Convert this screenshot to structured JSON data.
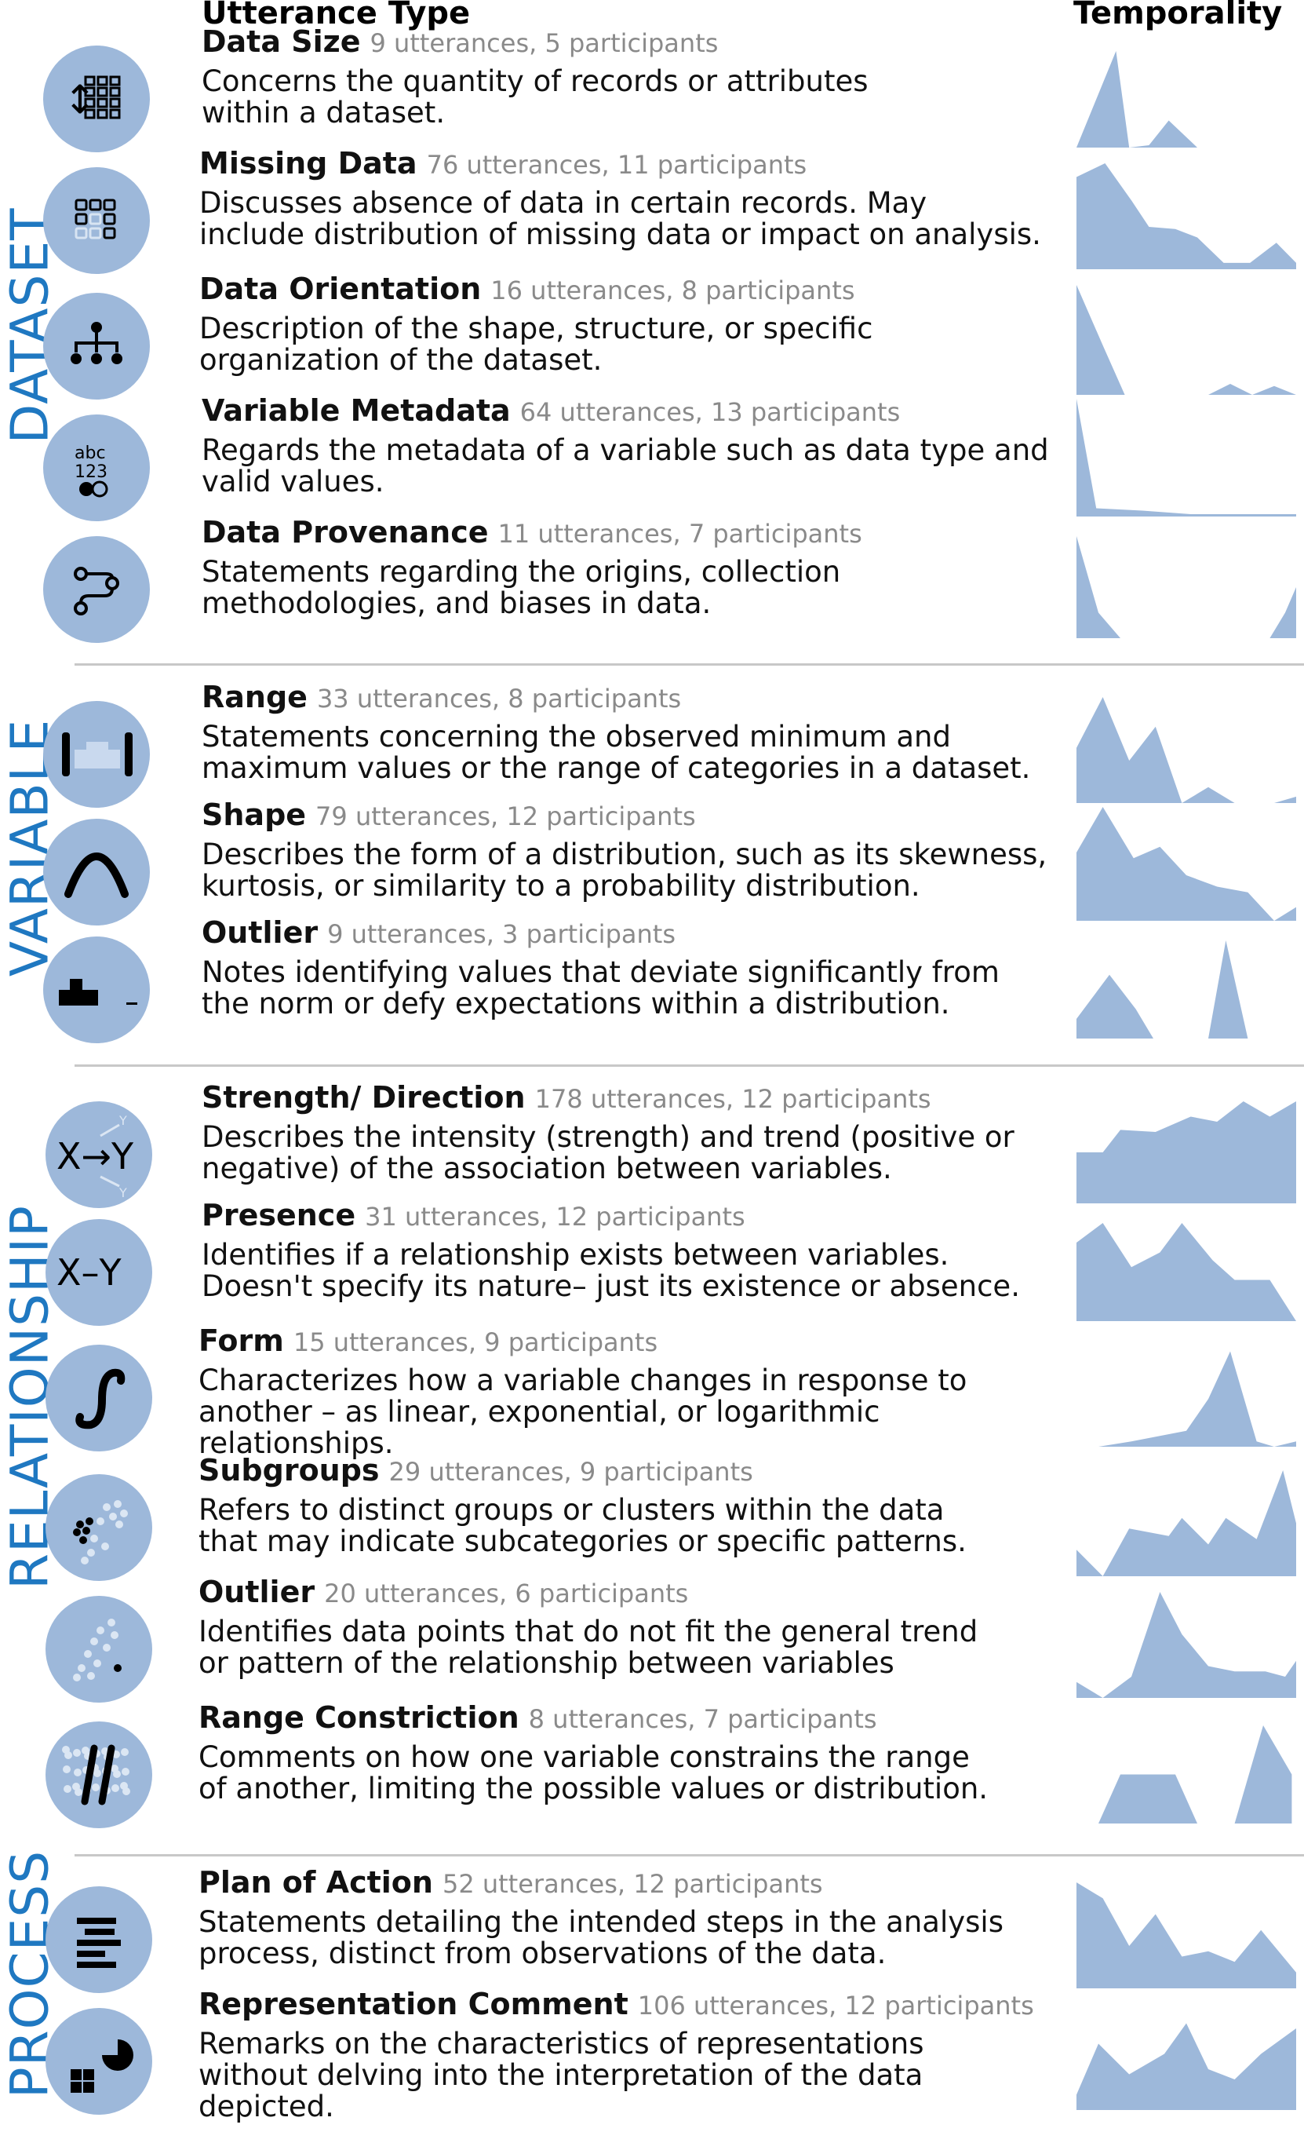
{
  "headers": {
    "utterance_type": "Utterance Type",
    "temporality": "Temporality"
  },
  "colors": {
    "accent": "#1f78c1",
    "icon_bg": "#9db8da",
    "area": "#9db8da"
  },
  "categories": [
    {
      "name": "DATASET",
      "items": [
        {
          "icon": "data-size-icon",
          "title": "Data Size",
          "meta": "9 utterances, 5 participants",
          "desc": [
            "Concerns the quantity of records or attributes",
            "within a dataset."
          ],
          "spark": [
            [
              0,
              0
            ],
            [
              0.18,
              0.82
            ],
            [
              0.24,
              0
            ],
            [
              0.33,
              0.02
            ],
            [
              0.42,
              0.23
            ],
            [
              0.55,
              0
            ]
          ]
        },
        {
          "icon": "missing-data-icon",
          "title": "Missing Data",
          "meta": "76 utterances,  11 participants",
          "desc": [
            "Discusses absence of data in certain records. May",
            "include distribution of missing data or impact on analysis."
          ],
          "spark": [
            [
              0,
              0.87
            ],
            [
              0.13,
              1
            ],
            [
              0.25,
              0.65
            ],
            [
              0.33,
              0.4
            ],
            [
              0.45,
              0.38
            ],
            [
              0.55,
              0.3
            ],
            [
              0.67,
              0.06
            ],
            [
              0.79,
              0.06
            ],
            [
              0.91,
              0.25
            ],
            [
              1,
              0.06
            ]
          ]
        },
        {
          "icon": "data-orientation-icon",
          "title": "Data Orientation",
          "meta": "16 utterances,  8 participants",
          "desc": [
            "Description of the shape, structure, or specific",
            "organization of the dataset."
          ],
          "spark": [
            [
              0,
              1
            ],
            [
              0.12,
              0.45
            ],
            [
              0.22,
              0
            ],
            [
              0.6,
              0
            ],
            [
              0.7,
              0.1
            ],
            [
              0.8,
              0
            ],
            [
              0.9,
              0.08
            ],
            [
              1,
              0
            ]
          ]
        },
        {
          "icon": "variable-metadata-icon",
          "title": "Variable Metadata",
          "meta": "64 utterances,  13 participants",
          "desc": [
            "Regards the metadata of a variable such as data type and",
            "valid values."
          ],
          "spark": [
            [
              0,
              1
            ],
            [
              0.09,
              0.07
            ],
            [
              0.3,
              0.05
            ],
            [
              0.52,
              0.02
            ],
            [
              1,
              0.02
            ]
          ]
        },
        {
          "icon": "data-provenance-icon",
          "title": "Data Provenance",
          "meta": "11 utterances,  7 participants",
          "desc": [
            "Statements regarding the origins, collection",
            "methodologies, and biases in data."
          ],
          "spark": [
            [
              0,
              1
            ],
            [
              0.1,
              0.25
            ],
            [
              0.2,
              0
            ],
            [
              0.88,
              0
            ],
            [
              0.95,
              0.25
            ],
            [
              1,
              0.5
            ]
          ]
        }
      ]
    },
    {
      "name": "VARIABLE",
      "items": [
        {
          "icon": "range-icon",
          "title": "Range",
          "meta": "33 utterances, 8 participants",
          "desc": [
            "Statements concerning the observed minimum and",
            "maximum values or the range of categories in a dataset."
          ],
          "spark": [
            [
              0,
              0.52
            ],
            [
              0.12,
              1
            ],
            [
              0.24,
              0.4
            ],
            [
              0.36,
              0.72
            ],
            [
              0.48,
              0
            ],
            [
              0.6,
              0.15
            ],
            [
              0.72,
              0
            ],
            [
              0.9,
              0
            ],
            [
              1,
              0.06
            ]
          ]
        },
        {
          "icon": "shape-icon",
          "title": "Shape",
          "meta": "79 utterances,  12 participants",
          "desc": [
            "Describes the form of a distribution, such as its skewness,",
            "kurtosis, or similarity to a probability distribution."
          ],
          "spark": [
            [
              0,
              0.6
            ],
            [
              0.12,
              1
            ],
            [
              0.26,
              0.55
            ],
            [
              0.38,
              0.65
            ],
            [
              0.5,
              0.4
            ],
            [
              0.64,
              0.3
            ],
            [
              0.78,
              0.25
            ],
            [
              0.9,
              0
            ],
            [
              1,
              0.12
            ]
          ]
        },
        {
          "icon": "outlier-dist-icon",
          "title": "Outlier",
          "meta": "9 utterances,  3 participants",
          "desc": [
            "Notes identifying values that deviate significantly from",
            "the norm or defy expectations within a distribution."
          ],
          "spark": [
            [
              0,
              0.2
            ],
            [
              0.15,
              0.65
            ],
            [
              0.27,
              0.3
            ],
            [
              0.35,
              0
            ],
            [
              0.48,
              0
            ],
            [
              0.6,
              0
            ],
            [
              0.68,
              1
            ],
            [
              0.78,
              0
            ]
          ]
        }
      ]
    },
    {
      "name": "RELATIONSHIP",
      "items": [
        {
          "icon": "strength-direction-icon",
          "title": "Strength/ Direction",
          "meta": "178 utterances, 12 participants",
          "desc": [
            "Describes the intensity (strength) and trend (positive or",
            "negative) of the association between variables."
          ],
          "spark": [
            [
              0,
              0.5
            ],
            [
              0.12,
              0.5
            ],
            [
              0.2,
              0.72
            ],
            [
              0.36,
              0.7
            ],
            [
              0.52,
              0.85
            ],
            [
              0.64,
              0.8
            ],
            [
              0.76,
              1
            ],
            [
              0.88,
              0.85
            ],
            [
              1,
              1
            ]
          ]
        },
        {
          "icon": "presence-icon",
          "title": "Presence",
          "meta": "31 utterances,  12 participants",
          "desc": [
            "Identifies if a relationship exists between variables.",
            "Doesn't specify its nature– just its existence or absence."
          ],
          "spark": [
            [
              0,
              0.8
            ],
            [
              0.12,
              1
            ],
            [
              0.25,
              0.55
            ],
            [
              0.38,
              0.7
            ],
            [
              0.48,
              1
            ],
            [
              0.62,
              0.62
            ],
            [
              0.72,
              0.42
            ],
            [
              0.88,
              0.42
            ],
            [
              1,
              0
            ]
          ]
        },
        {
          "icon": "form-icon",
          "title": "Form",
          "meta": "15 utterances,  9 participants",
          "desc": [
            "Characterizes how a variable changes in response to",
            "another – as linear, exponential, or logarithmic relationships."
          ],
          "spark": [
            [
              0.1,
              0
            ],
            [
              0.25,
              0.05
            ],
            [
              0.5,
              0.15
            ],
            [
              0.6,
              0.45
            ],
            [
              0.7,
              0.9
            ],
            [
              0.82,
              0.05
            ],
            [
              0.9,
              0
            ],
            [
              1,
              0.05
            ]
          ]
        },
        {
          "icon": "subgroups-icon",
          "title": "Subgroups",
          "meta": "29 utterances,  9 participants",
          "desc": [
            "Refers to distinct groups or clusters within the data",
            "that may indicate subcategories or specific patterns."
          ],
          "spark": [
            [
              0,
              0.25
            ],
            [
              0.12,
              0
            ],
            [
              0.24,
              0.45
            ],
            [
              0.42,
              0.38
            ],
            [
              0.48,
              0.55
            ],
            [
              0.6,
              0.3
            ],
            [
              0.68,
              0.55
            ],
            [
              0.82,
              0.35
            ],
            [
              0.94,
              1
            ],
            [
              1,
              0.5
            ]
          ]
        },
        {
          "icon": "outlier-rel-icon",
          "title": "Outlier",
          "meta": "20 utterances,  6 participants",
          "desc": [
            "Identifies data points that do not fit the general trend",
            "or pattern of the relationship between variables"
          ],
          "spark": [
            [
              0,
              0.15
            ],
            [
              0.12,
              0
            ],
            [
              0.25,
              0.2
            ],
            [
              0.38,
              1
            ],
            [
              0.48,
              0.6
            ],
            [
              0.6,
              0.3
            ],
            [
              0.72,
              0.25
            ],
            [
              0.86,
              0.25
            ],
            [
              0.95,
              0.2
            ],
            [
              1,
              0.35
            ]
          ]
        },
        {
          "icon": "range-constriction-icon",
          "title": "Range Constriction",
          "meta": "8 utterances,  7 participants",
          "desc": [
            "Comments on how one variable constrains the range",
            "of another, limiting the possible values or distribution."
          ],
          "spark": [
            [
              0.1,
              0
            ],
            [
              0.2,
              0.5
            ],
            [
              0.45,
              0.5
            ],
            [
              0.55,
              0
            ],
            [
              0.72,
              0
            ],
            [
              0.85,
              1
            ],
            [
              0.98,
              0.5
            ],
            [
              0.98,
              0
            ]
          ]
        }
      ]
    },
    {
      "name": "PROCESS",
      "items": [
        {
          "icon": "plan-of-action-icon",
          "title": "Plan of Action",
          "meta": "52 utterances, 12 participants",
          "desc": [
            "Statements detailing the intended steps in the analysis",
            "process, distinct from observations of the data."
          ],
          "spark": [
            [
              0,
              1
            ],
            [
              0.12,
              0.85
            ],
            [
              0.24,
              0.4
            ],
            [
              0.36,
              0.7
            ],
            [
              0.48,
              0.3
            ],
            [
              0.6,
              0.35
            ],
            [
              0.72,
              0.25
            ],
            [
              0.84,
              0.55
            ],
            [
              1,
              0.15
            ]
          ]
        },
        {
          "icon": "representation-comment-icon",
          "title": "Representation Comment",
          "meta": "106 utterances, 12 participants",
          "desc": [
            "Remarks on the characteristics of representations",
            "without delving into the interpretation of the data",
            "depicted."
          ],
          "spark": [
            [
              0,
              0.15
            ],
            [
              0.1,
              0.65
            ],
            [
              0.24,
              0.35
            ],
            [
              0.4,
              0.55
            ],
            [
              0.5,
              0.85
            ],
            [
              0.6,
              0.4
            ],
            [
              0.72,
              0.3
            ],
            [
              0.84,
              0.55
            ],
            [
              1,
              0.8
            ]
          ]
        }
      ]
    }
  ]
}
